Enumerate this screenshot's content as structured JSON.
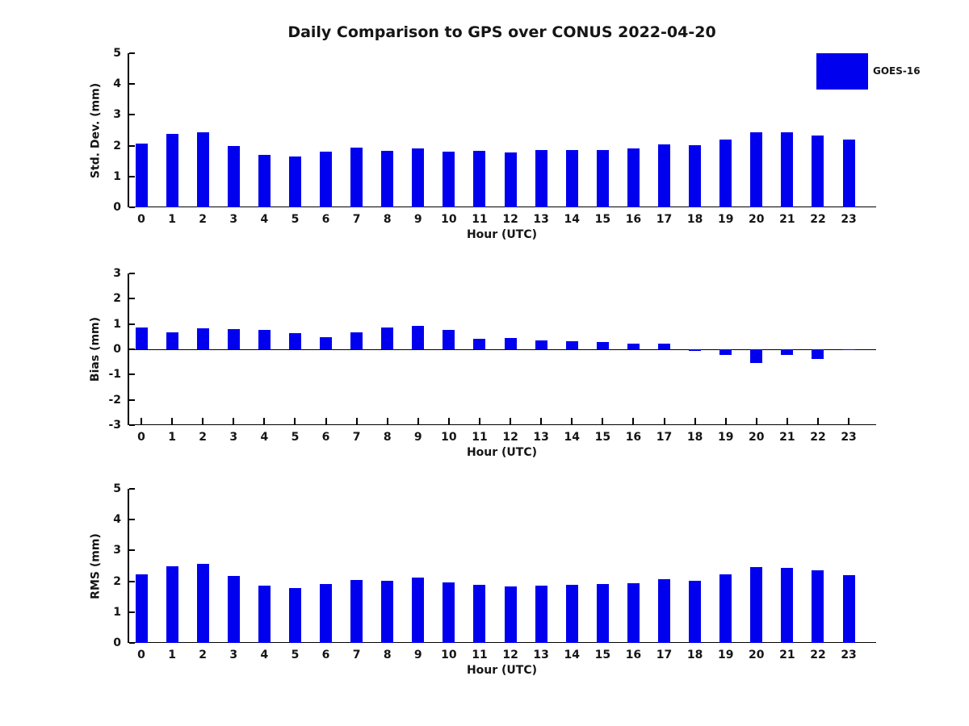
{
  "title": "Daily Comparison to GPS over CONUS 2022-04-20",
  "legend": {
    "label": "GOES-16",
    "color": "#0000ee",
    "position": "upper-right"
  },
  "colors": {
    "bar": "#0000ee",
    "axis": "#000000",
    "text": "#151515",
    "background": "#ffffff"
  },
  "chart_data": [
    {
      "type": "bar",
      "ylabel": "Std. Dev. (mm)",
      "xlabel": "Hour (UTC)",
      "ylim": [
        0,
        5
      ],
      "yticks": [
        0,
        1,
        2,
        3,
        4,
        5
      ],
      "grid": false,
      "zero_line": false,
      "show_x_tick_marks": false,
      "categories": [
        "0",
        "1",
        "2",
        "3",
        "4",
        "5",
        "6",
        "7",
        "8",
        "9",
        "10",
        "11",
        "12",
        "13",
        "14",
        "15",
        "16",
        "17",
        "18",
        "19",
        "20",
        "21",
        "22",
        "23"
      ],
      "series": [
        {
          "name": "GOES-16",
          "values": [
            2.07,
            2.37,
            2.43,
            2.0,
            1.71,
            1.66,
            1.81,
            1.94,
            1.82,
            1.92,
            1.81,
            1.84,
            1.78,
            1.85,
            1.85,
            1.87,
            1.9,
            2.04,
            2.01,
            2.2,
            2.43,
            2.43,
            2.33,
            2.2
          ]
        }
      ]
    },
    {
      "type": "bar",
      "ylabel": "Bias (mm)",
      "xlabel": "Hour (UTC)",
      "ylim": [
        -3,
        3
      ],
      "yticks": [
        3,
        2,
        1,
        0,
        -1,
        -2,
        -3
      ],
      "grid": false,
      "zero_line": true,
      "show_x_tick_marks": true,
      "categories": [
        "0",
        "1",
        "2",
        "3",
        "4",
        "5",
        "6",
        "7",
        "8",
        "9",
        "10",
        "11",
        "12",
        "13",
        "14",
        "15",
        "16",
        "17",
        "18",
        "19",
        "20",
        "21",
        "22",
        "23"
      ],
      "series": [
        {
          "name": "GOES-16",
          "values": [
            0.85,
            0.68,
            0.83,
            0.79,
            0.76,
            0.64,
            0.49,
            0.68,
            0.85,
            0.92,
            0.77,
            0.43,
            0.44,
            0.35,
            0.32,
            0.28,
            0.23,
            0.23,
            -0.07,
            -0.23,
            -0.53,
            -0.22,
            -0.37,
            -0.02
          ]
        }
      ]
    },
    {
      "type": "bar",
      "ylabel": "RMS (mm)",
      "xlabel": "Hour (UTC)",
      "ylim": [
        0,
        5
      ],
      "yticks": [
        0,
        1,
        2,
        3,
        4,
        5
      ],
      "grid": false,
      "zero_line": false,
      "show_x_tick_marks": false,
      "categories": [
        "0",
        "1",
        "2",
        "3",
        "4",
        "5",
        "6",
        "7",
        "8",
        "9",
        "10",
        "11",
        "12",
        "13",
        "14",
        "15",
        "16",
        "17",
        "18",
        "19",
        "20",
        "21",
        "22",
        "23"
      ],
      "series": [
        {
          "name": "GOES-16",
          "values": [
            2.22,
            2.49,
            2.56,
            2.16,
            1.86,
            1.78,
            1.9,
            2.05,
            2.02,
            2.12,
            1.97,
            1.89,
            1.83,
            1.87,
            1.88,
            1.91,
            1.95,
            2.07,
            2.02,
            2.22,
            2.47,
            2.44,
            2.35,
            2.21
          ]
        }
      ]
    }
  ]
}
